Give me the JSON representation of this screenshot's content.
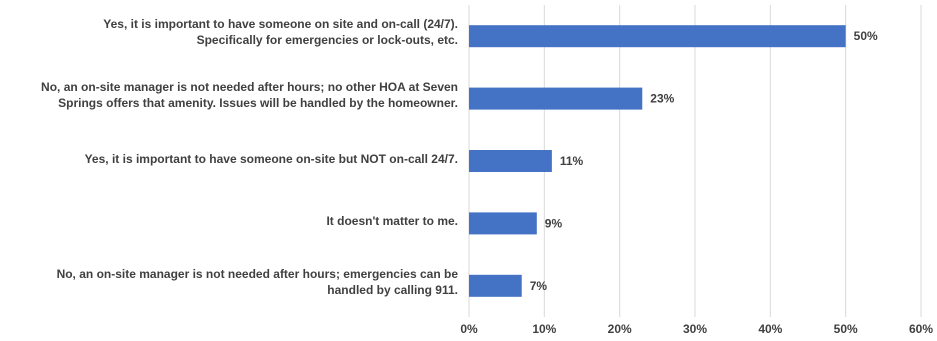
{
  "chart_data": {
    "type": "bar",
    "orientation": "horizontal",
    "categories": [
      [
        "Yes, it is important to have someone on site and on-call (24/7).",
        "Specifically for emergencies or lock-outs, etc."
      ],
      [
        "No, an on-site manager is not needed after hours; no other HOA at Seven",
        "Springs offers that amenity.  Issues will be handled by the homeowner."
      ],
      [
        "Yes, it is important to have someone on-site but NOT on-call 24/7."
      ],
      [
        "It doesn't matter to me."
      ],
      [
        "No, an on-site manager is not needed after hours; emergencies can be",
        "handled by calling 911."
      ]
    ],
    "values": [
      50,
      23,
      11,
      9,
      7
    ],
    "data_labels": [
      "50%",
      "23%",
      "11%",
      "9%",
      "7%"
    ],
    "xlim": [
      0,
      60
    ],
    "x_ticks": [
      "0%",
      "10%",
      "20%",
      "30%",
      "40%",
      "50%",
      "60%"
    ],
    "title": "",
    "xlabel": "",
    "ylabel": "",
    "grid": "vertical",
    "legend": "none",
    "bar_color": "#4472C4",
    "grid_color": "#D9D9D9",
    "text_color": "#404040"
  }
}
